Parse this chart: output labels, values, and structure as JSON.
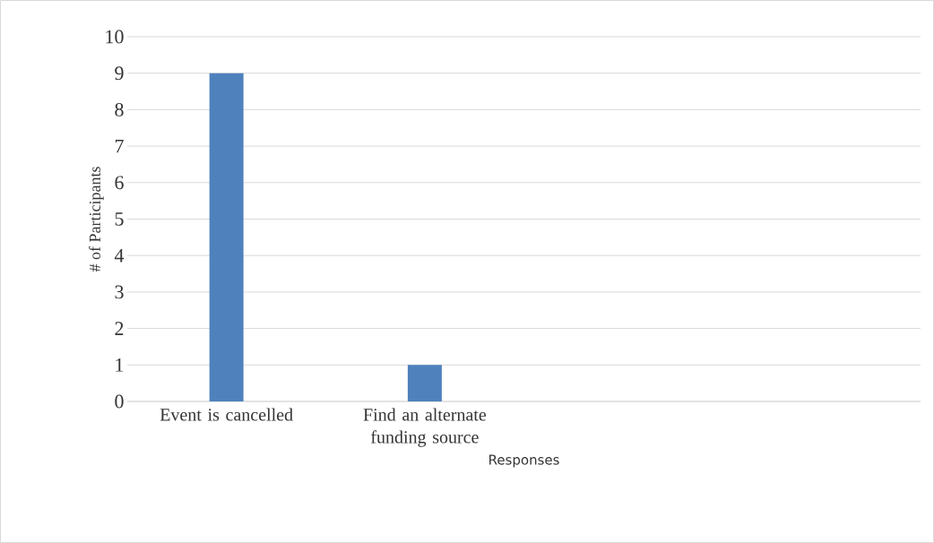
{
  "chart_data": {
    "type": "bar",
    "xlabel": "Responses",
    "ylabel": "# of Participants",
    "categories": [
      "Event is cancelled",
      "Find an alternate funding source",
      null,
      null
    ],
    "values": [
      9,
      1,
      null,
      null
    ],
    "color": "#4f81bd",
    "ylim": [
      0,
      10
    ],
    "yticks": [
      0,
      1,
      2,
      3,
      4,
      5,
      6,
      7,
      8,
      9,
      10
    ],
    "grid": "y"
  }
}
